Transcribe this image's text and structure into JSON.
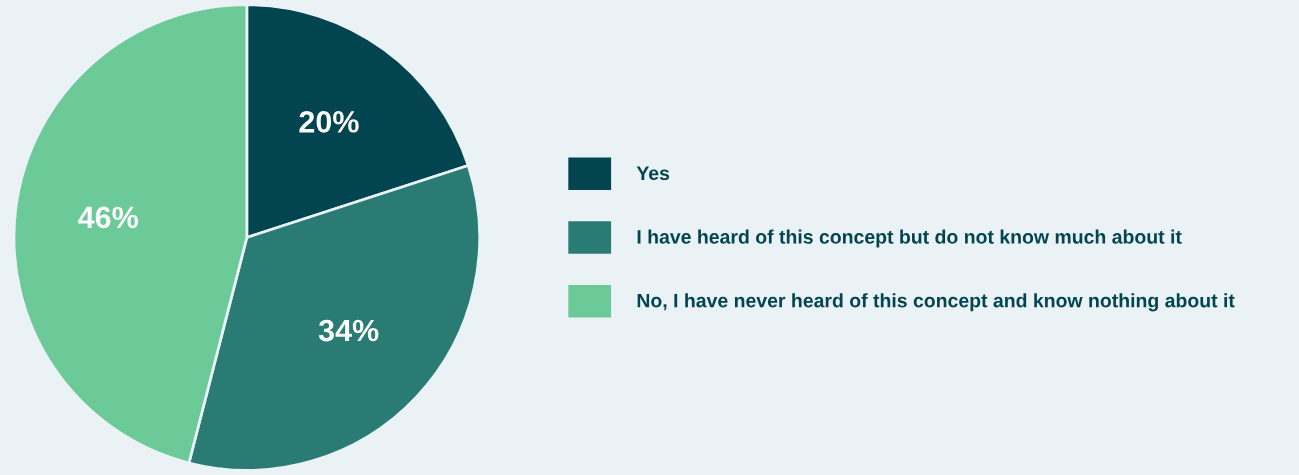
{
  "chart_data": {
    "type": "pie",
    "categories": [
      "Yes",
      "I have heard of this concept but do not know much about it",
      "No, I have never heard of this concept and know nothing about it"
    ],
    "values": [
      20,
      34,
      46
    ],
    "value_labels": [
      "20%",
      "34%",
      "46%"
    ],
    "colors": [
      "#024450",
      "#2a7b74",
      "#6cca98"
    ],
    "legend": "right"
  }
}
